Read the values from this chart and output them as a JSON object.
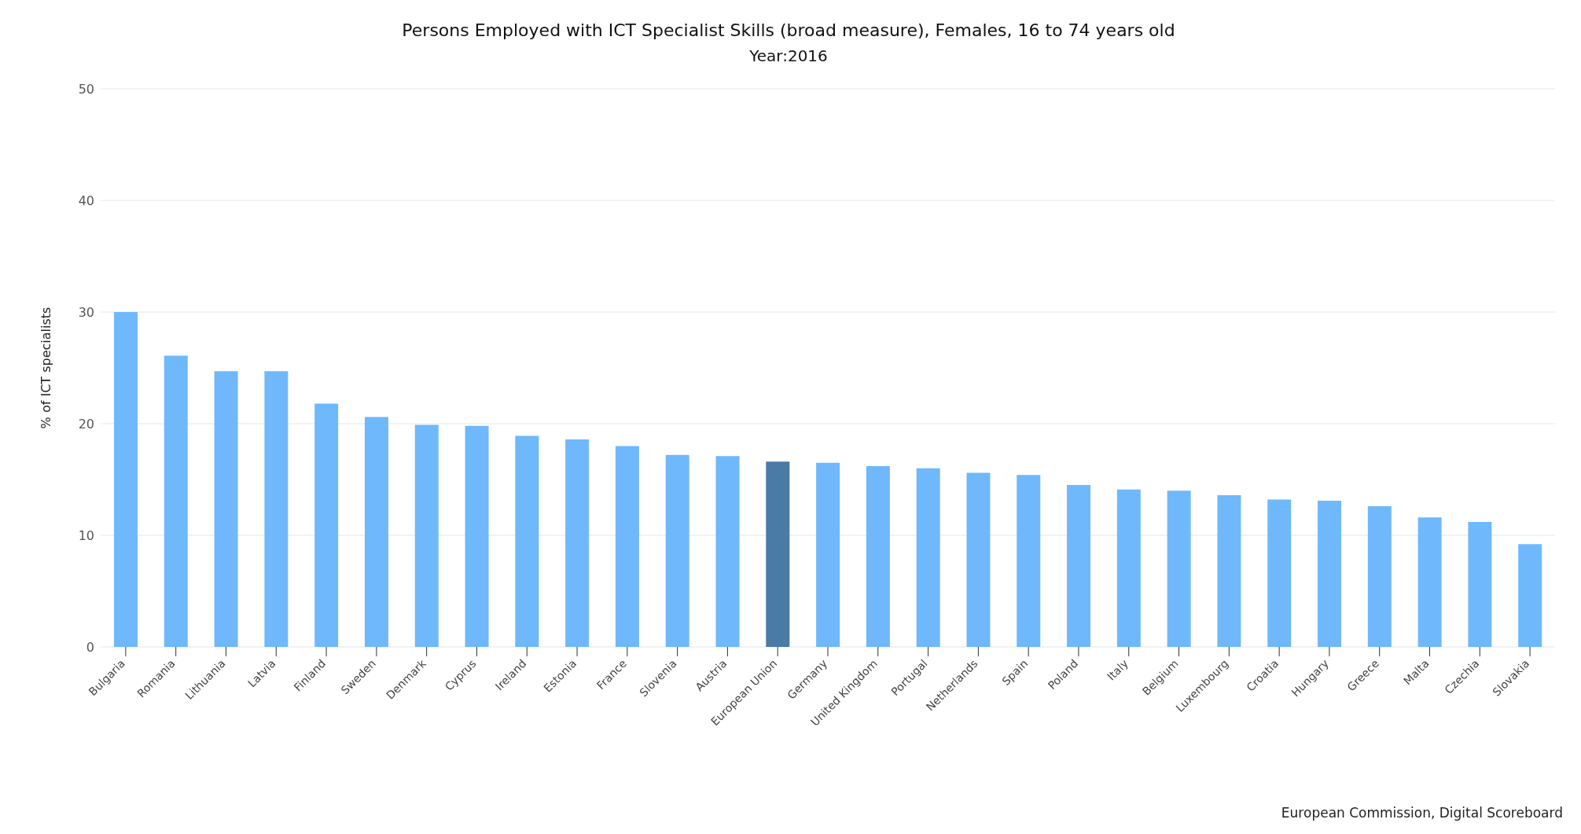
{
  "chart_data": {
    "type": "bar",
    "title": "Persons Employed with ICT Specialist Skills (broad measure), Females, 16 to 74 years old",
    "subtitle": "Year:2016",
    "ylabel": "% of ICT specialists",
    "categories": [
      "Bulgaria",
      "Romania",
      "Lithuania",
      "Latvia",
      "Finland",
      "Sweden",
      "Denmark",
      "Cyprus",
      "Ireland",
      "Estonia",
      "France",
      "Slovenia",
      "Austria",
      "European Union",
      "Germany",
      "United Kingdom",
      "Portugal",
      "Netherlands",
      "Spain",
      "Poland",
      "Italy",
      "Belgium",
      "Luxembourg",
      "Croatia",
      "Hungary",
      "Greece",
      "Malta",
      "Czechia",
      "Slovakia"
    ],
    "values": [
      30.0,
      26.1,
      24.7,
      24.7,
      21.8,
      20.6,
      19.9,
      19.8,
      18.9,
      18.6,
      18.0,
      17.2,
      17.1,
      16.6,
      16.5,
      16.2,
      16.0,
      15.6,
      15.4,
      14.5,
      14.1,
      14.0,
      13.6,
      13.2,
      13.1,
      12.6,
      11.6,
      11.2,
      9.2
    ],
    "colors": [
      "#6fb8fb",
      "#6fb8fb",
      "#6fb8fb",
      "#6fb8fb",
      "#6fb8fb",
      "#6fb8fb",
      "#6fb8fb",
      "#6fb8fb",
      "#6fb8fb",
      "#6fb8fb",
      "#6fb8fb",
      "#6fb8fb",
      "#6fb8fb",
      "#4a7aa6",
      "#6fb8fb",
      "#6fb8fb",
      "#6fb8fb",
      "#6fb8fb",
      "#6fb8fb",
      "#6fb8fb",
      "#6fb8fb",
      "#6fb8fb",
      "#6fb8fb",
      "#6fb8fb",
      "#6fb8fb",
      "#6fb8fb",
      "#6fb8fb",
      "#6fb8fb",
      "#6fb8fb"
    ],
    "ylim": [
      0,
      50
    ],
    "yticks": [
      0,
      10,
      20,
      30,
      40,
      50
    ],
    "grid": "y",
    "annotations": [
      "European Commission, Digital Scoreboard"
    ]
  }
}
